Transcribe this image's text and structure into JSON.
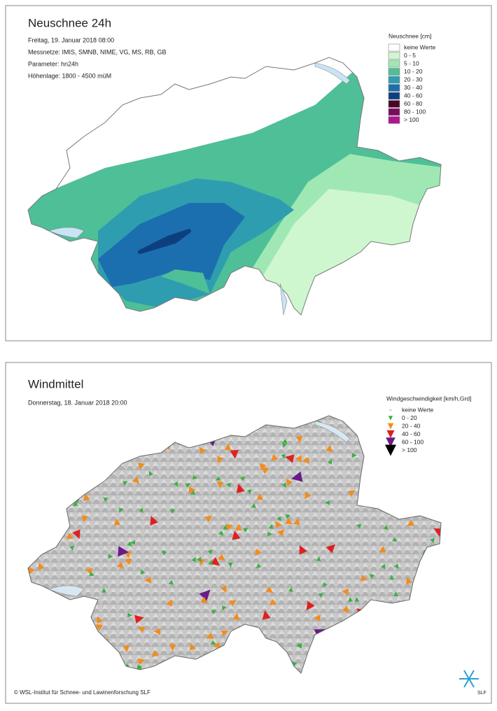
{
  "panels": [
    {
      "title": "Neuschnee 24h",
      "info": [
        "Freitag, 19. Januar 2018 08:00",
        "Messnetze: IMIS, SMNB, NIME, VG, MS, RB, GB",
        "Parameter: hn24h",
        "Höhenlage: 1800 - 4500 müM"
      ],
      "legend": {
        "title": "Neuschnee [cm]",
        "items": [
          {
            "label": "keine Werte",
            "color": "#ffffff"
          },
          {
            "label": "0 - 5",
            "color": "#cff7cf"
          },
          {
            "label": "5 - 10",
            "color": "#9fe8b4"
          },
          {
            "label": "10 - 20",
            "color": "#4fbf98"
          },
          {
            "label": "20 - 30",
            "color": "#2f9db0"
          },
          {
            "label": "30 - 40",
            "color": "#1c6fae"
          },
          {
            "label": "40 - 60",
            "color": "#0d3f7f"
          },
          {
            "label": "60 - 80",
            "color": "#4a0628"
          },
          {
            "label": "80 - 100",
            "color": "#7d0a5f"
          },
          {
            "label": "> 100",
            "color": "#b0148f"
          }
        ]
      }
    },
    {
      "title": "Windmittel",
      "info": [
        "Donnerstag, 18. Januar 2018 20:00"
      ],
      "legend": {
        "title": "Windgeschwindigkeit [km/h,Grd]",
        "items": [
          {
            "label": "keine Werte",
            "color": "#d0d0d0"
          },
          {
            "label": "0 - 20",
            "color": "#3cb043"
          },
          {
            "label": "20 - 40",
            "color": "#f28c1e"
          },
          {
            "label": "40 - 60",
            "color": "#e02020"
          },
          {
            "label": "60 - 100",
            "color": "#6a1b8a"
          },
          {
            "label": "> 100",
            "color": "#000000"
          }
        ]
      }
    }
  ],
  "copyright": "© WSL-Institut für Schnee- und Lawinenforschung SLF",
  "logo_text": "SLF"
}
